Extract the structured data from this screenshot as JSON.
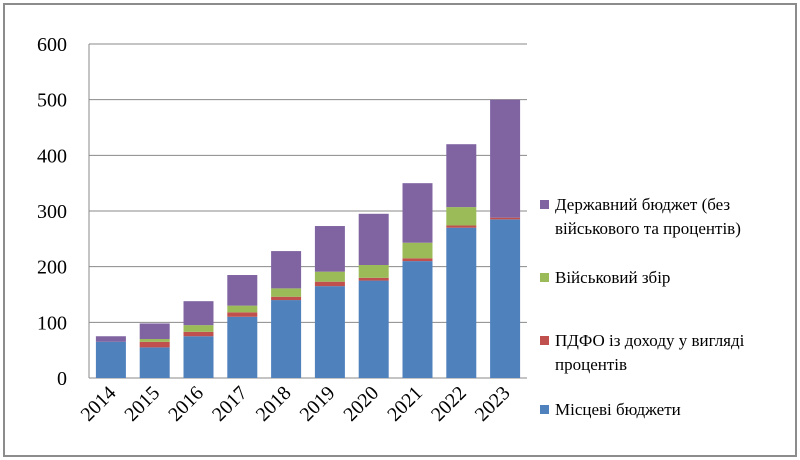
{
  "chart_data": {
    "type": "bar",
    "stacked": true,
    "categories": [
      "2014",
      "2015",
      "2016",
      "2017",
      "2018",
      "2019",
      "2020",
      "2021",
      "2022",
      "2023"
    ],
    "ylim": [
      0,
      600
    ],
    "yticks": [
      0,
      100,
      200,
      300,
      400,
      500,
      600
    ],
    "grid": true,
    "legend_position": "right",
    "series": [
      {
        "name": "Місцеві бюджети",
        "color": "#4f81bd",
        "values": [
          65,
          55,
          75,
          110,
          140,
          165,
          175,
          210,
          270,
          285
        ]
      },
      {
        "name": "ПДФО із доходу у вигляді процентів",
        "color": "#c0504d",
        "values": [
          0,
          10,
          8,
          8,
          6,
          8,
          5,
          5,
          4,
          3
        ]
      },
      {
        "name": "Військовий збір",
        "color": "#9bbb59",
        "values": [
          0,
          5,
          12,
          12,
          15,
          18,
          23,
          28,
          33,
          0
        ]
      },
      {
        "name": "Державний бюджет (без військового та процентів)",
        "color": "#8064a2",
        "values": [
          10,
          28,
          43,
          55,
          67,
          82,
          92,
          107,
          113,
          212
        ]
      }
    ],
    "legend": [
      {
        "lines": [
          "Державний бюджет (без",
          "військового та процентів)"
        ],
        "color": "#8064a2"
      },
      {
        "lines": [
          "Військовий збір"
        ],
        "color": "#9bbb59"
      },
      {
        "lines": [
          "ПДФО із доходу у вигляді",
          "процентів"
        ],
        "color": "#c0504d"
      },
      {
        "lines": [
          "Місцеві бюджети"
        ],
        "color": "#4f81bd"
      }
    ]
  }
}
